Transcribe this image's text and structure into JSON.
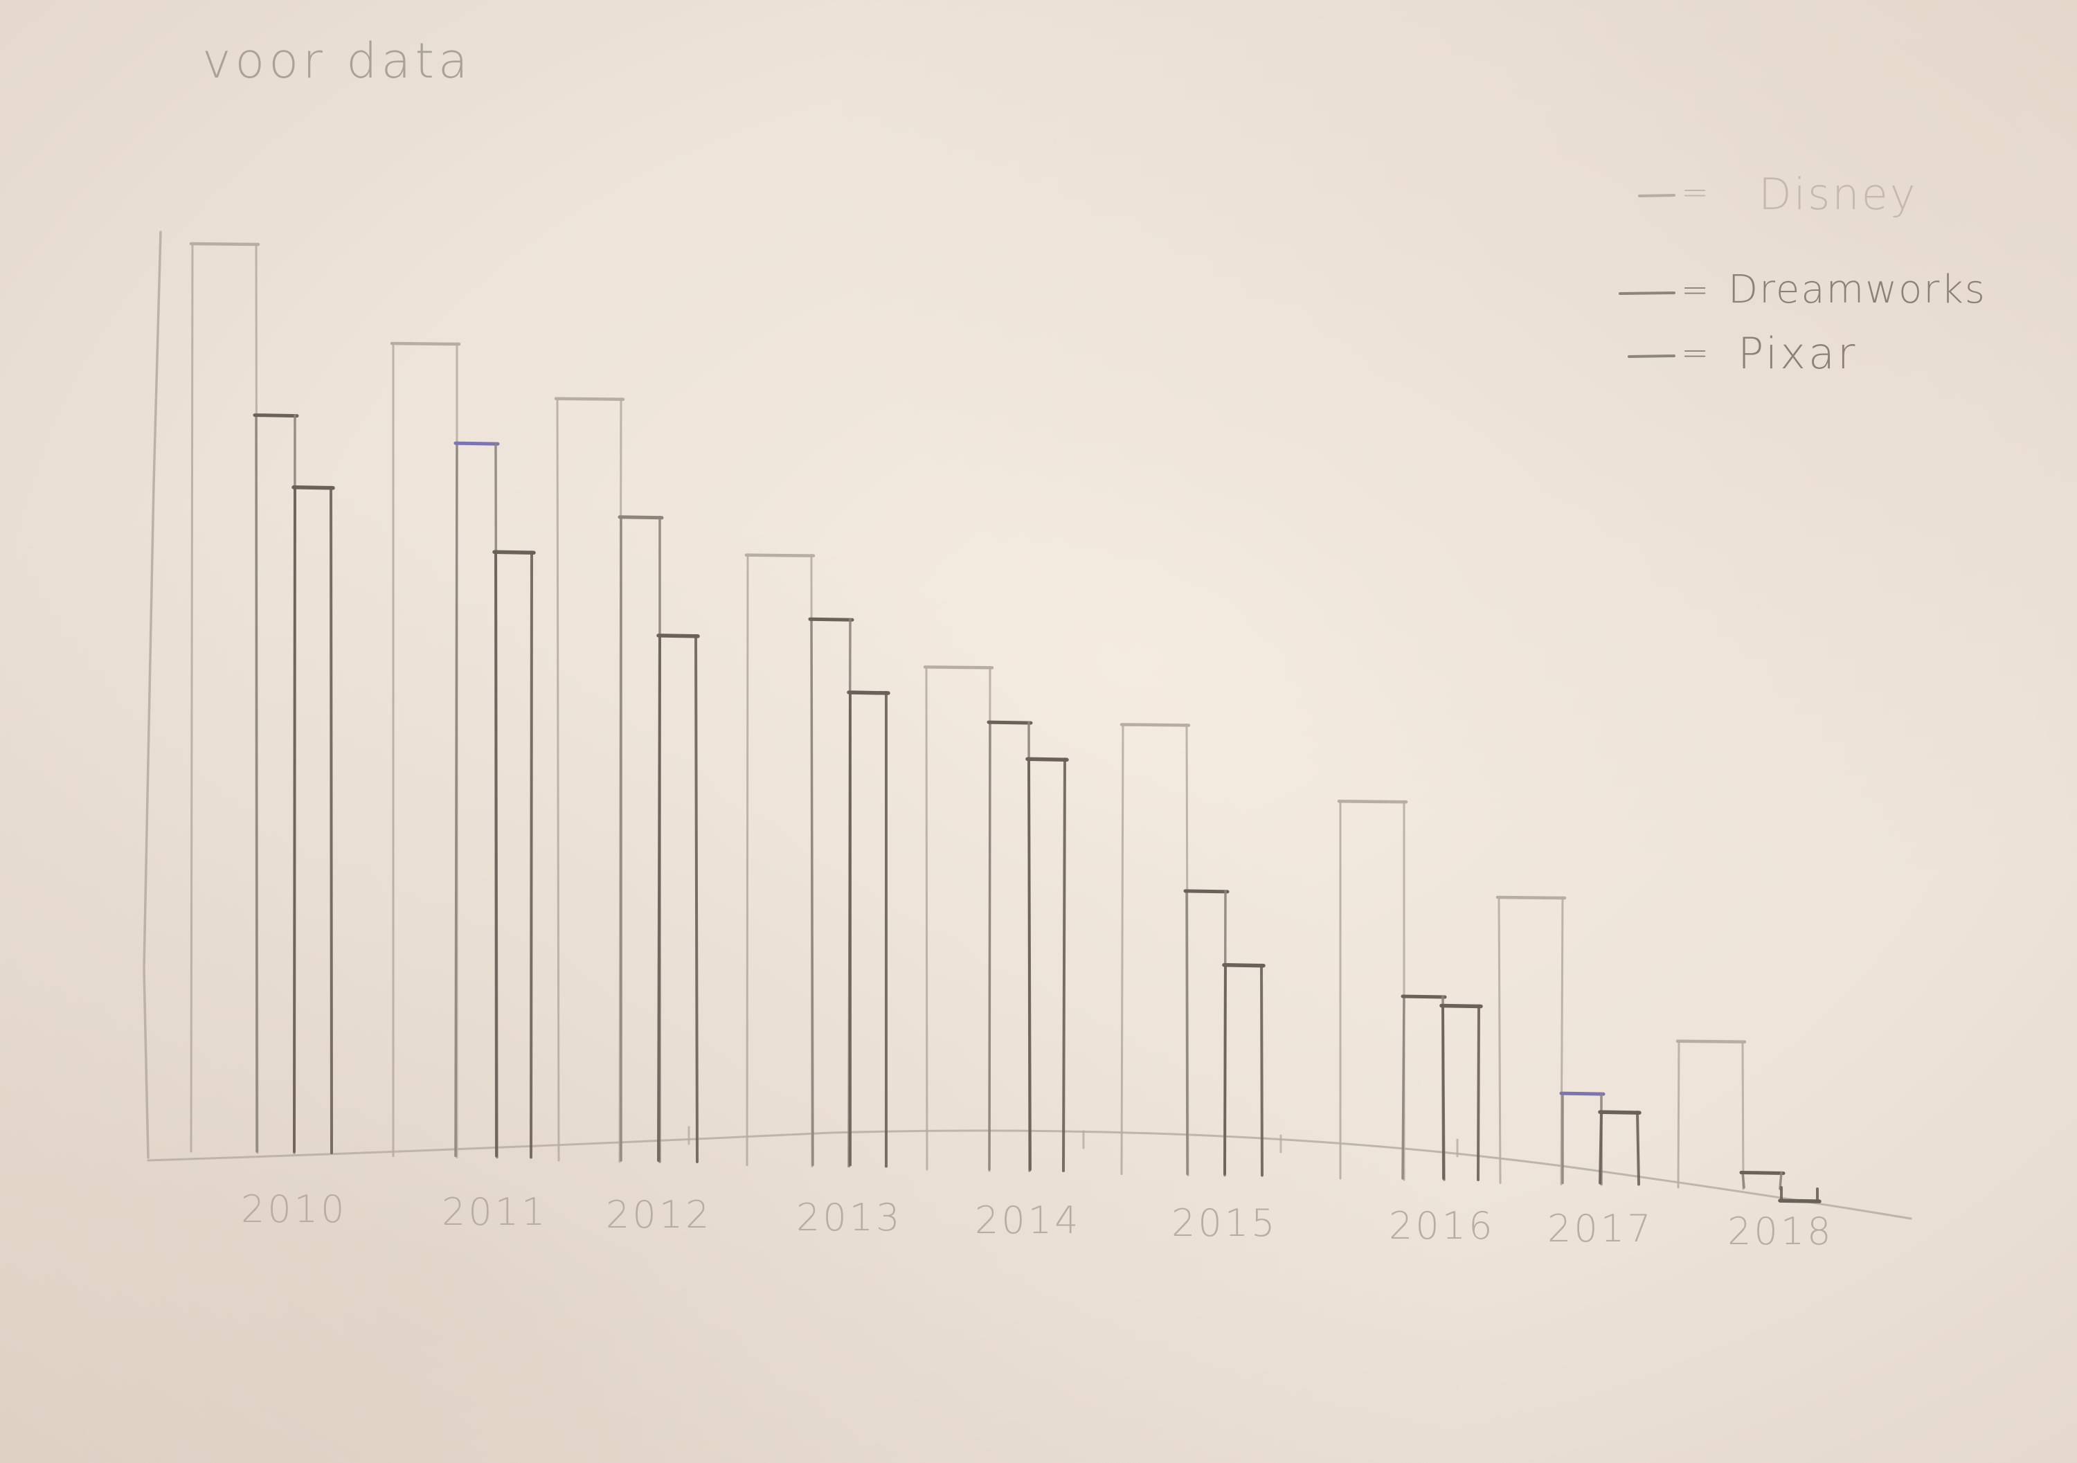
{
  "page": {
    "title": "voor data"
  },
  "chart_data": {
    "type": "bar",
    "title": "voor data",
    "xlabel": "",
    "ylabel": "",
    "categories": [
      "2010",
      "2011",
      "2012",
      "2013",
      "2014",
      "2015",
      "2016",
      "2017",
      "2018"
    ],
    "series": [
      {
        "name": "Disney",
        "values": [
          100,
          89,
          83,
          66,
          54,
          48,
          40,
          30,
          15
        ]
      },
      {
        "name": "Dreamworks",
        "values": [
          81,
          78,
          70,
          59,
          48,
          30,
          19,
          9,
          1
        ]
      },
      {
        "name": "Pixar",
        "values": [
          73,
          66,
          57,
          51,
          44,
          22,
          18,
          7,
          -2
        ]
      }
    ],
    "ylim": [
      0,
      100
    ],
    "grid": false,
    "legend_position": "top-right",
    "colors": {
      "pencil": "#8d857c",
      "pencil_dark": "#6a6159",
      "pencil_light": "#b7ada2",
      "blue_ink": "#7b74b3",
      "paper": "#efe5da"
    }
  }
}
